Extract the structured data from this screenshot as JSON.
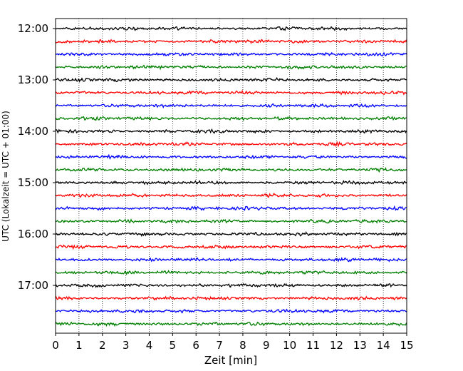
{
  "chart_data": {
    "type": "line",
    "xlabel": "Zeit  [min]",
    "ylabel": "UTC (Lokalzeit = UTC + 01:00)",
    "xlim": [
      0,
      15
    ],
    "xticks": [
      "0",
      "1",
      "2",
      "3",
      "4",
      "5",
      "6",
      "7",
      "8",
      "9",
      "10",
      "11",
      "12",
      "13",
      "14",
      "15"
    ],
    "yticks": [
      "12:00",
      "13:00",
      "14:00",
      "15:00",
      "16:00",
      "17:00"
    ],
    "grid_x": true,
    "trace_interval_min": 15,
    "start_time": "12:00",
    "trace_count": 24,
    "trace_colors": [
      "#000000",
      "#ff0000",
      "#0000ff",
      "#008000"
    ],
    "amplitude_relative": 0.3
  }
}
